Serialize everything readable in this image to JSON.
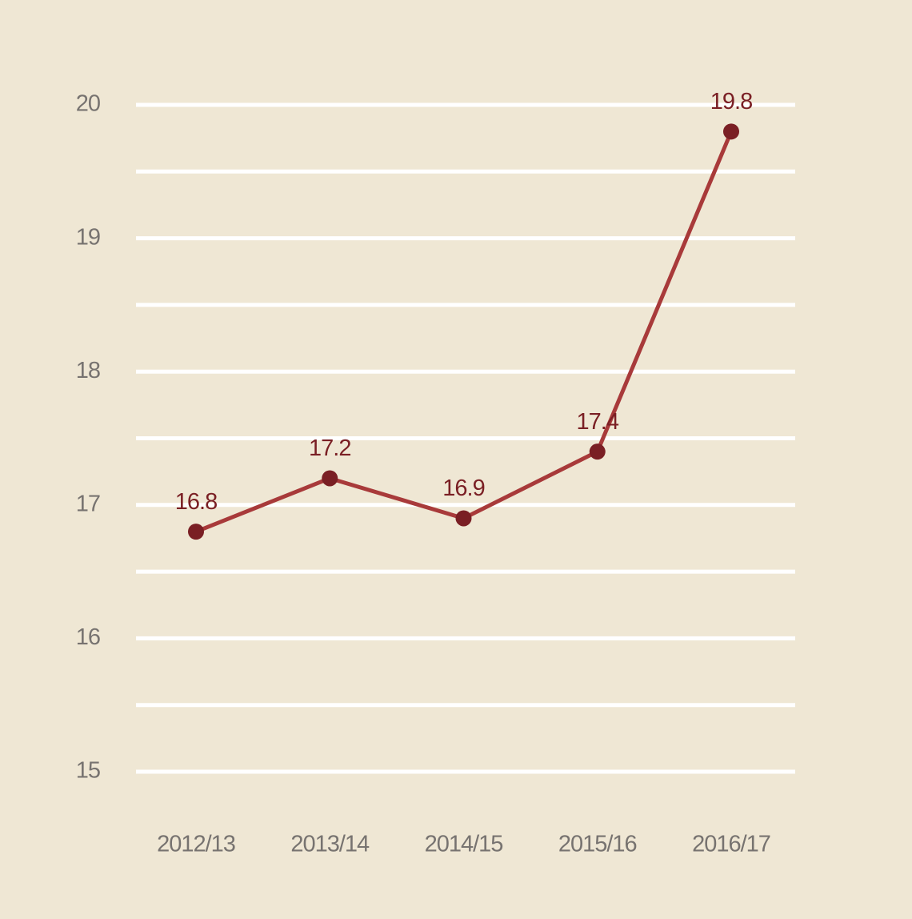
{
  "chart_data": {
    "type": "line",
    "categories": [
      "2012/13",
      "2013/14",
      "2014/15",
      "2015/16",
      "2016/17"
    ],
    "values": [
      16.8,
      17.2,
      16.9,
      17.4,
      19.8
    ],
    "color": "#a83a3a",
    "marker_color": "#7a1f24",
    "ylim": [
      15,
      20
    ],
    "yticks": [
      15,
      16,
      17,
      18,
      19,
      20
    ],
    "minor_yticks": [
      15.5,
      16.5,
      17.5,
      18.5,
      19.5
    ],
    "grid": true
  }
}
